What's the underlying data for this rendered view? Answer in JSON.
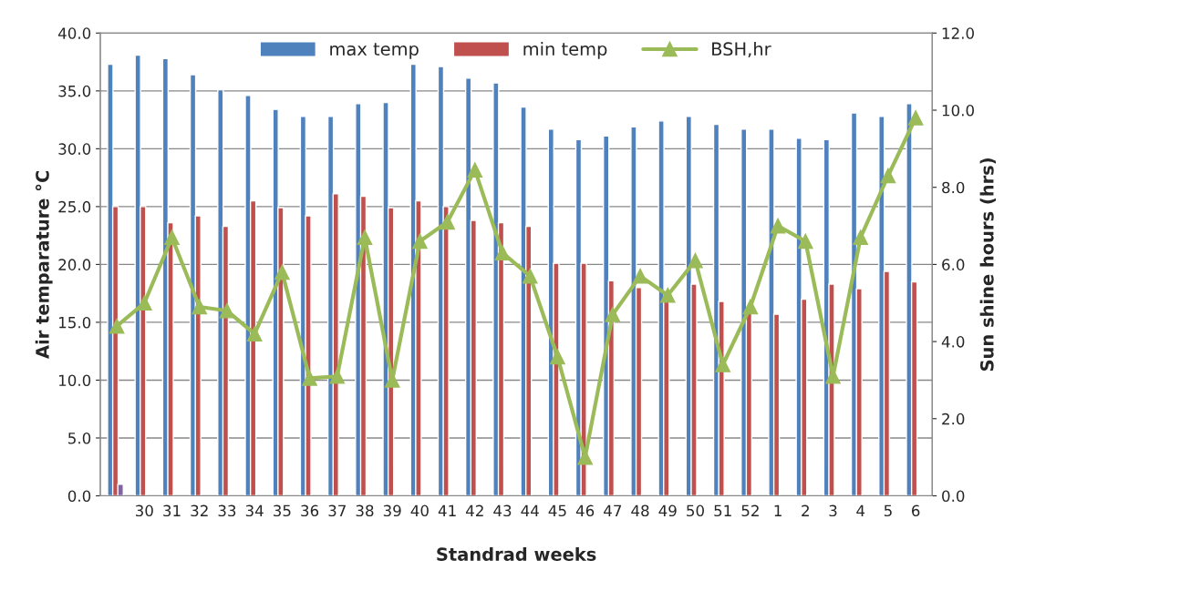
{
  "chart_data": {
    "type": "bar",
    "xlabel": "Standrad weeks",
    "ylabel": "Air temparature °C",
    "y2label": "Sun shine hours (hrs)",
    "categories": [
      null,
      "30",
      "31",
      "32",
      "33",
      "34",
      "35",
      "36",
      "37",
      "38",
      "39",
      "40",
      "41",
      "42",
      "43",
      "44",
      "45",
      "46",
      "47",
      "48",
      "49",
      "50",
      "51",
      "52",
      "1",
      "2",
      "3",
      "4",
      "5",
      "6"
    ],
    "series": [
      {
        "name": "max temp",
        "color": "#4f81bd",
        "values": [
          37.3,
          38.1,
          37.8,
          36.4,
          35.1,
          34.6,
          33.4,
          32.8,
          32.8,
          33.9,
          34.0,
          37.3,
          37.1,
          36.1,
          35.7,
          33.6,
          31.7,
          30.8,
          31.1,
          31.9,
          32.4,
          32.8,
          32.1,
          31.7,
          31.7,
          30.9,
          30.8,
          33.1,
          32.8,
          33.9
        ]
      },
      {
        "name": "min temp",
        "color": "#c0504d",
        "values": [
          25.0,
          25.0,
          23.6,
          24.2,
          23.3,
          25.5,
          24.9,
          24.2,
          26.1,
          25.9,
          24.9,
          25.5,
          25.0,
          23.8,
          23.6,
          23.3,
          20.1,
          20.1,
          18.6,
          18.0,
          16.9,
          18.3,
          16.8,
          16.0,
          15.7,
          17.0,
          18.3,
          17.9,
          19.4,
          18.5
        ]
      },
      {
        "color": "#8064a2",
        "values": [
          1.0,
          null,
          null,
          null,
          null,
          null,
          null,
          null,
          null,
          null,
          null,
          null,
          null,
          null,
          null,
          null,
          null,
          null,
          null,
          null,
          null,
          null,
          null,
          null,
          null,
          null,
          null,
          null,
          null,
          null
        ]
      },
      {
        "name": "BSH,hr",
        "type": "line",
        "axis": "y2",
        "color": "#9bbb59",
        "marker": "triangle",
        "values": [
          4.4,
          5.0,
          6.7,
          4.9,
          4.8,
          4.2,
          5.8,
          3.05,
          3.1,
          6.7,
          3.0,
          6.6,
          7.1,
          8.45,
          6.3,
          5.7,
          3.6,
          1.0,
          4.7,
          5.7,
          5.2,
          6.1,
          3.4,
          4.9,
          7.0,
          6.6,
          3.1,
          6.7,
          8.3,
          9.8
        ]
      }
    ],
    "ylim": [
      0,
      40
    ],
    "yticks": [
      {
        "value": 0,
        "label": "0.0"
      },
      {
        "value": 5,
        "label": "5.0"
      },
      {
        "value": 10,
        "label": "10.0"
      },
      {
        "value": 15,
        "label": "15.0"
      },
      {
        "value": 20,
        "label": "20.0"
      },
      {
        "value": 25,
        "label": "25.0"
      },
      {
        "value": 30,
        "label": "30.0"
      },
      {
        "value": 35,
        "label": "35.0"
      },
      {
        "value": 40,
        "label": "40.0"
      }
    ],
    "y2lim": [
      0,
      12
    ],
    "y2ticks": [
      {
        "value": 0,
        "label": "0.0"
      },
      {
        "value": 2,
        "label": "2.0"
      },
      {
        "value": 4,
        "label": "4.0"
      },
      {
        "value": 6,
        "label": "6.0"
      },
      {
        "value": 8,
        "label": "8.0"
      },
      {
        "value": 10,
        "label": "10.0"
      },
      {
        "value": 12,
        "label": "12.0"
      }
    ],
    "grid": "y",
    "legend": "top"
  }
}
